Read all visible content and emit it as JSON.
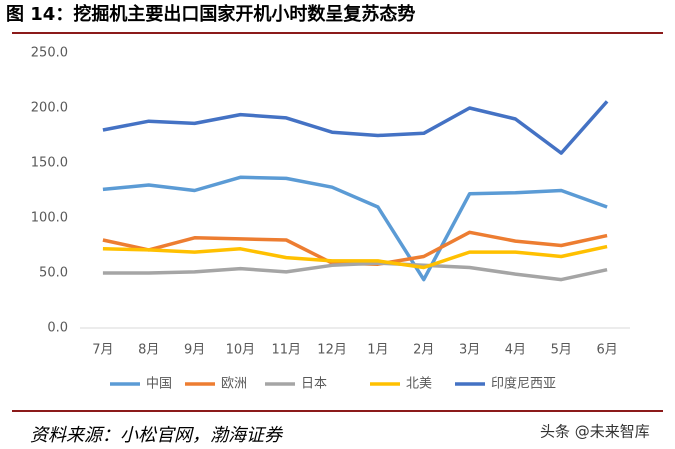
{
  "chart_data": {
    "type": "line",
    "title": "图 14：挖掘机主要出口国家开机小时数呈复苏态势",
    "categories": [
      "7月",
      "8月",
      "9月",
      "10月",
      "11月",
      "12月",
      "1月",
      "2月",
      "3月",
      "4月",
      "5月",
      "6月"
    ],
    "series": [
      {
        "name": "中国",
        "color": "#5b9bd5",
        "values": [
          126,
          130,
          125,
          137,
          136,
          128,
          110,
          44,
          122,
          123,
          125,
          110
        ]
      },
      {
        "name": "欧洲",
        "color": "#ed7d31",
        "values": [
          80,
          71,
          82,
          81,
          80,
          59,
          58,
          65,
          87,
          79,
          75,
          84
        ]
      },
      {
        "name": "日本",
        "color": "#a5a5a5",
        "values": [
          50,
          50,
          51,
          54,
          51,
          57,
          59,
          57,
          55,
          49,
          44,
          53
        ]
      },
      {
        "name": "北美",
        "color": "#ffc000",
        "values": [
          72,
          71,
          69,
          72,
          64,
          61,
          61,
          55,
          69,
          69,
          65,
          74
        ]
      },
      {
        "name": "印度尼西亚",
        "color": "#4472c4",
        "values": [
          180,
          188,
          186,
          194,
          191,
          178,
          175,
          177,
          200,
          190,
          159,
          206
        ]
      }
    ],
    "ylim": [
      0,
      250
    ],
    "yticks": [
      {
        "value": 0,
        "label": "0.0"
      },
      {
        "value": 50,
        "label": "50.0"
      },
      {
        "value": 100,
        "label": "100.0"
      },
      {
        "value": 150,
        "label": "150.0"
      },
      {
        "value": 200,
        "label": "200.0"
      },
      {
        "value": 250,
        "label": "250.0"
      }
    ],
    "grid": false,
    "legend": "bottom"
  },
  "source": "资料来源：小松官网，渤海证券",
  "watermark": "头条 @未来智库"
}
